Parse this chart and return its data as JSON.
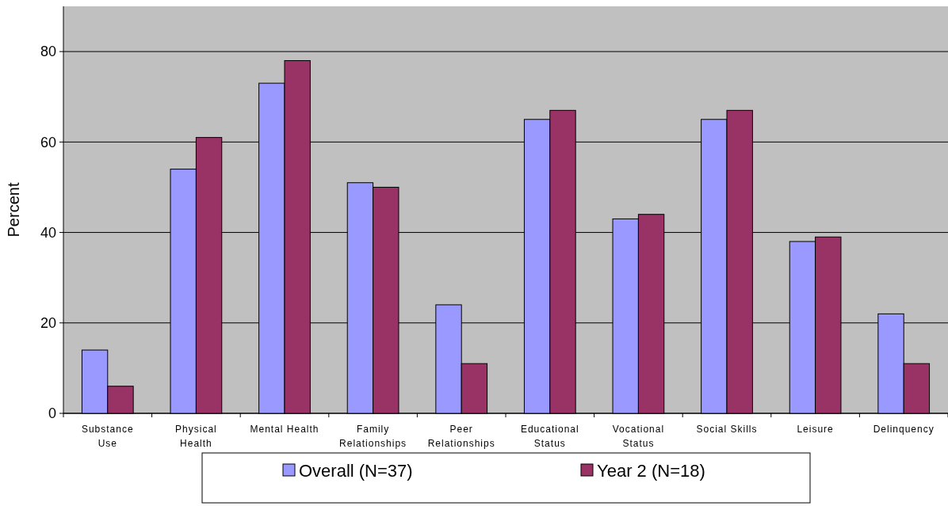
{
  "chart_data": {
    "type": "bar",
    "ylabel": "Percent",
    "categories": [
      "Substance Use",
      "Physical Health",
      "Mental Health",
      "Family Relationships",
      "Peer Relationships",
      "Educational Status",
      "Vocational Status",
      "Social Skills",
      "Leisure",
      "Delinquency"
    ],
    "series": [
      {
        "name": "Overall (N=37)",
        "color": "#9999ff",
        "values": [
          14,
          54,
          73,
          51,
          24,
          65,
          43,
          65,
          38,
          22
        ]
      },
      {
        "name": "Year 2 (N=18)",
        "color": "#993366",
        "values": [
          6,
          61,
          78,
          50,
          11,
          67,
          44,
          67,
          39,
          11
        ]
      }
    ],
    "ylim": [
      0,
      90
    ],
    "yticks": [
      0,
      20,
      40,
      60,
      80
    ],
    "grid": "y",
    "legend": "bottom"
  }
}
